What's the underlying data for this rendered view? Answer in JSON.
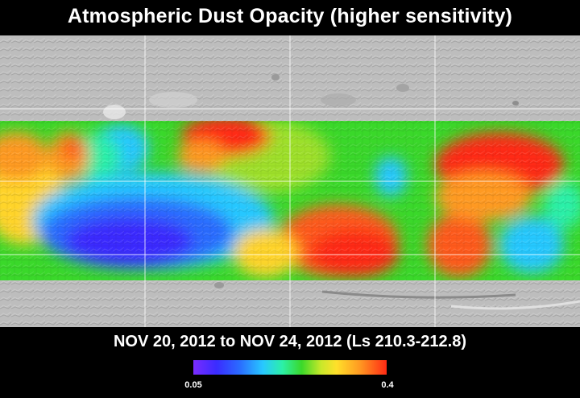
{
  "title": "Atmospheric Dust Opacity (higher sensitivity)",
  "date_range": "NOV 20, 2012 to NOV 24, 2012 (Ls 210.3-212.8)",
  "colorbar": {
    "min_label": "0.05",
    "max_label": "0.4",
    "colors": [
      "#7a2cff",
      "#3a2cff",
      "#2a6cff",
      "#28c8ff",
      "#2cf0a8",
      "#3ad82a",
      "#c8e82a",
      "#ffe02a",
      "#ff9a22",
      "#ff2a14"
    ]
  },
  "map": {
    "terrain_color": "#bdbdbd",
    "grid_color": "#ffffff"
  }
}
